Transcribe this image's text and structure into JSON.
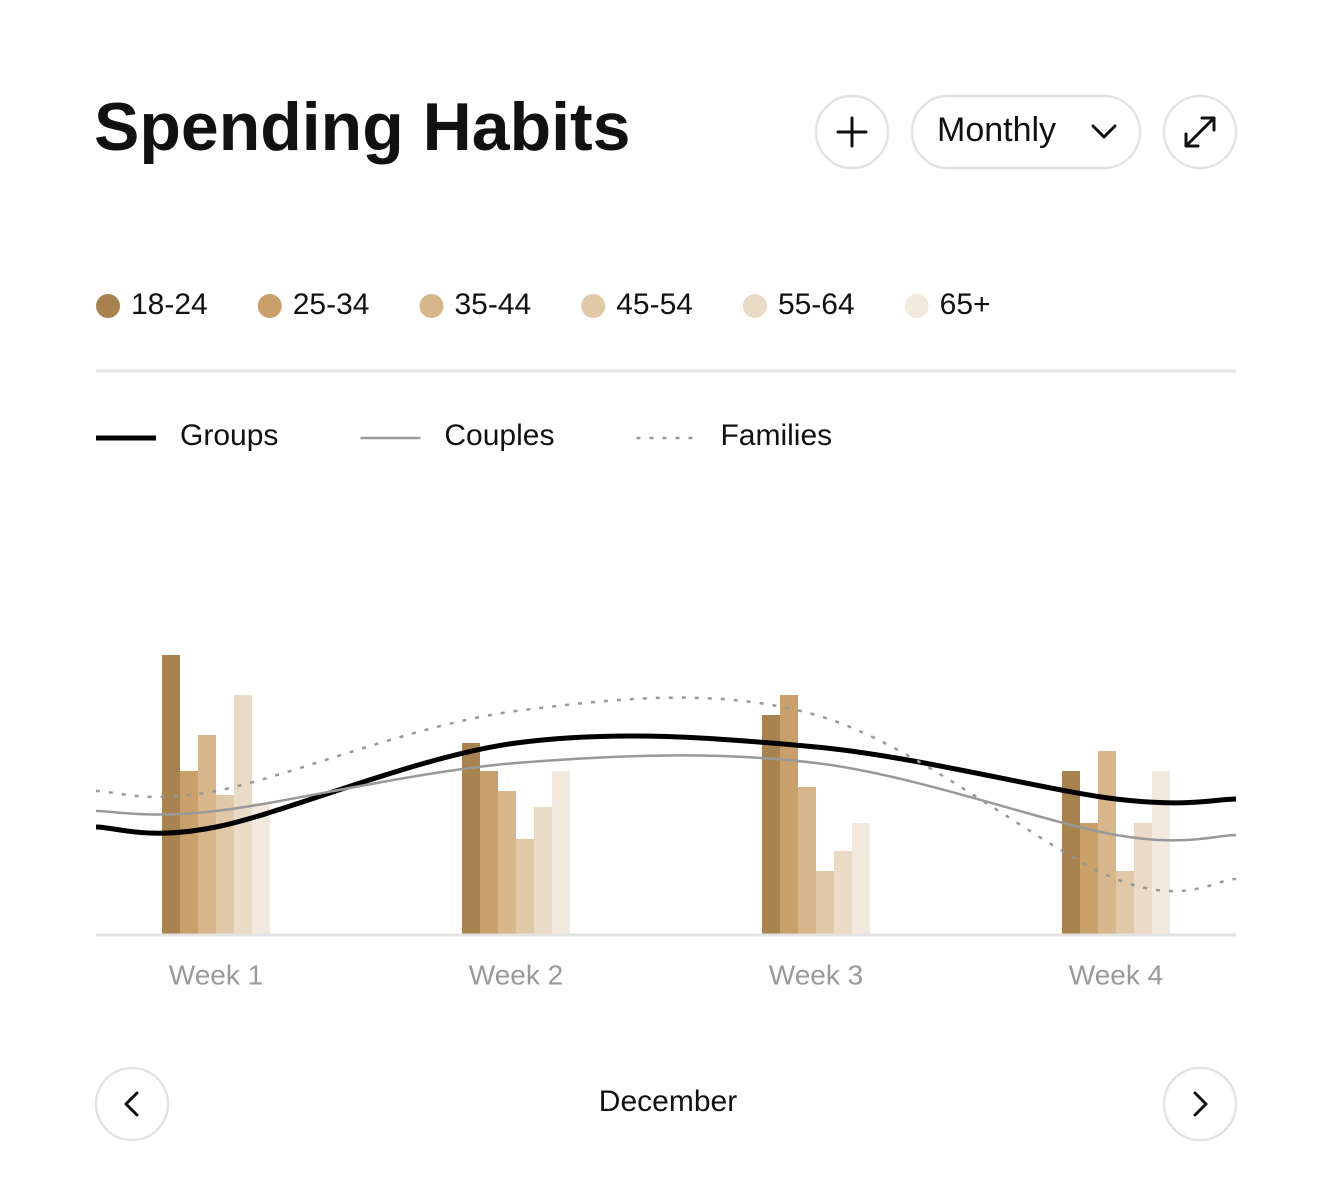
{
  "header": {
    "title": "Spending Habits",
    "period_select": "Monthly"
  },
  "chart_data": {
    "type": "bar",
    "categories": [
      "Week 1",
      "Week 2",
      "Week 3",
      "Week 4"
    ],
    "ylim": [
      0,
      100
    ],
    "series": [
      {
        "name": "18-24",
        "color": "#a8834f",
        "values": [
          70,
          48,
          55,
          41
        ]
      },
      {
        "name": "25-34",
        "color": "#c9a06a",
        "values": [
          41,
          41,
          60,
          28
        ]
      },
      {
        "name": "35-44",
        "color": "#d6b68a",
        "values": [
          50,
          36,
          37,
          46
        ]
      },
      {
        "name": "45-54",
        "color": "#e1c8a7",
        "values": [
          35,
          24,
          16,
          16
        ]
      },
      {
        "name": "55-64",
        "color": "#eadbc6",
        "values": [
          60,
          32,
          21,
          28
        ]
      },
      {
        "name": "65+",
        "color": "#f3e9de",
        "values": [
          33,
          41,
          28,
          41
        ]
      }
    ],
    "line_series": [
      {
        "name": "Groups",
        "color": "#000000",
        "style": "bold",
        "values": [
          27,
          48,
          47,
          34
        ]
      },
      {
        "name": "Couples",
        "color": "#999999",
        "style": "solid",
        "values": [
          31,
          43,
          43,
          25
        ]
      },
      {
        "name": "Families",
        "color": "#999999",
        "style": "dotted",
        "values": [
          36,
          56,
          55,
          14
        ]
      }
    ]
  },
  "footer": {
    "month": "December"
  }
}
